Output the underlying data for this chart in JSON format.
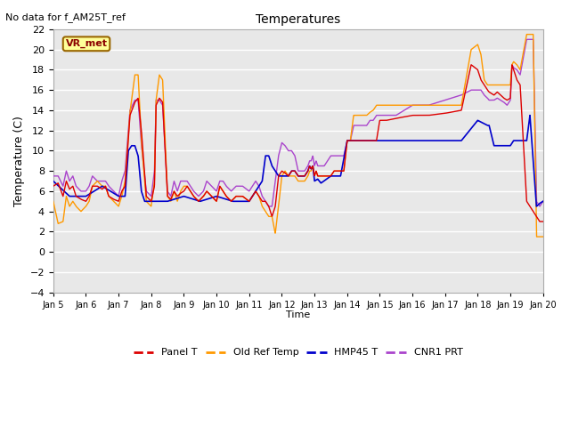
{
  "title": "Temperatures",
  "xlabel": "Time",
  "ylabel": "Temperature (C)",
  "top_left_text": "No data for f_AM25T_ref",
  "annotation_text": "VR_met",
  "ylim": [
    -4,
    22
  ],
  "xlim": [
    0,
    15
  ],
  "yticks": [
    -4,
    -2,
    0,
    2,
    4,
    6,
    8,
    10,
    12,
    14,
    16,
    18,
    20,
    22
  ],
  "xtick_labels": [
    "Jan 5",
    "Jan 6",
    "Jan 7",
    "Jan 8",
    "Jan 9",
    "Jan 10",
    "Jan 11",
    "Jan 12",
    "Jan 13",
    "Jan 14",
    "Jan 15",
    "Jan 16",
    "Jan 17",
    "Jan 18",
    "Jan 19",
    "Jan 20"
  ],
  "legend_labels": [
    "Panel T",
    "Old Ref Temp",
    "HMP45 T",
    "CNR1 PRT"
  ],
  "color_panel_t": "#dd0000",
  "color_old_ref": "#ff9900",
  "color_hmp45": "#0000cc",
  "color_cnr1": "#aa44cc",
  "bg_color": "#e8e8e8",
  "annotation_facecolor": "#ffff99",
  "annotation_edgecolor": "#996600",
  "panel_t_x": [
    0,
    0.15,
    0.3,
    0.4,
    0.5,
    0.6,
    0.7,
    0.85,
    1.0,
    1.1,
    1.2,
    1.35,
    1.5,
    1.6,
    1.7,
    1.85,
    2.0,
    2.1,
    2.2,
    2.35,
    2.5,
    2.6,
    2.7,
    2.85,
    3.0,
    3.1,
    3.15,
    3.25,
    3.35,
    3.5,
    3.6,
    3.7,
    3.8,
    3.9,
    4.0,
    4.1,
    4.2,
    4.3,
    4.45,
    4.6,
    4.7,
    4.85,
    5.0,
    5.1,
    5.2,
    5.3,
    5.45,
    5.6,
    5.8,
    6.0,
    6.1,
    6.2,
    6.3,
    6.4,
    6.5,
    6.6,
    6.7,
    6.8,
    6.9,
    7.0,
    7.1,
    7.2,
    7.3,
    7.4,
    7.5,
    7.6,
    7.7,
    7.8,
    7.85,
    7.9,
    7.95,
    8.0,
    8.05,
    8.1,
    8.2,
    8.3,
    8.4,
    8.5,
    8.6,
    8.7,
    8.8,
    8.9,
    9.0,
    9.05,
    9.1,
    9.2,
    9.3,
    9.4,
    9.5,
    9.6,
    9.7,
    9.8,
    9.9,
    10.0,
    10.1,
    10.2,
    10.5,
    11.0,
    11.5,
    12.0,
    12.5,
    12.8,
    13.0,
    13.1,
    13.2,
    13.3,
    13.35,
    13.5,
    13.6,
    13.7,
    13.8,
    13.9,
    14.0,
    14.05,
    14.1,
    14.2,
    14.3,
    14.5,
    14.6,
    14.7,
    14.8,
    14.9,
    15.0
  ],
  "panel_t_y": [
    6.5,
    6.8,
    5.5,
    7.0,
    6.2,
    6.5,
    5.5,
    5.2,
    5.0,
    5.5,
    6.5,
    6.5,
    6.2,
    6.5,
    5.5,
    5.2,
    5.0,
    6.0,
    6.5,
    13.5,
    14.8,
    15.2,
    12.0,
    5.5,
    5.0,
    6.5,
    14.5,
    15.2,
    14.8,
    5.5,
    5.2,
    6.0,
    5.5,
    5.8,
    6.0,
    6.5,
    6.0,
    5.5,
    5.0,
    5.5,
    6.0,
    5.5,
    5.0,
    6.5,
    6.0,
    5.5,
    5.0,
    5.5,
    5.5,
    5.0,
    5.5,
    6.0,
    5.5,
    5.0,
    5.0,
    4.5,
    3.5,
    4.5,
    7.5,
    8.0,
    7.8,
    7.5,
    8.0,
    8.0,
    7.5,
    7.5,
    7.5,
    8.0,
    8.5,
    8.2,
    8.5,
    7.5,
    8.0,
    7.5,
    7.5,
    7.5,
    7.5,
    7.5,
    8.0,
    8.0,
    8.0,
    8.0,
    11.0,
    11.0,
    11.0,
    11.0,
    11.0,
    11.0,
    11.0,
    11.0,
    11.0,
    11.0,
    11.0,
    13.0,
    13.0,
    13.0,
    13.2,
    13.5,
    13.5,
    13.7,
    14.0,
    18.5,
    18.0,
    17.0,
    16.5,
    16.0,
    15.8,
    15.5,
    15.8,
    15.5,
    15.2,
    15.0,
    15.2,
    18.5,
    18.0,
    17.0,
    16.5,
    5.0,
    4.5,
    4.0,
    3.5,
    3.0,
    3.0
  ],
  "old_ref_x": [
    0,
    0.15,
    0.3,
    0.4,
    0.5,
    0.6,
    0.7,
    0.85,
    1.0,
    1.1,
    1.2,
    1.35,
    1.5,
    1.6,
    1.7,
    1.85,
    2.0,
    2.1,
    2.2,
    2.35,
    2.5,
    2.6,
    2.7,
    2.85,
    3.0,
    3.1,
    3.15,
    3.25,
    3.35,
    3.5,
    3.6,
    3.7,
    3.8,
    3.9,
    4.0,
    4.1,
    4.2,
    4.3,
    4.45,
    4.6,
    4.7,
    4.85,
    5.0,
    5.1,
    5.2,
    5.3,
    5.45,
    5.6,
    5.8,
    6.0,
    6.1,
    6.2,
    6.3,
    6.4,
    6.5,
    6.6,
    6.7,
    6.8,
    6.9,
    7.0,
    7.1,
    7.2,
    7.3,
    7.4,
    7.5,
    7.6,
    7.7,
    7.8,
    7.85,
    7.9,
    7.95,
    8.0,
    8.05,
    8.1,
    8.2,
    8.3,
    8.4,
    8.5,
    8.6,
    8.7,
    8.8,
    8.9,
    9.0,
    9.05,
    9.1,
    9.2,
    9.3,
    9.4,
    9.5,
    9.6,
    9.7,
    9.8,
    9.9,
    10.0,
    10.1,
    10.2,
    10.5,
    11.0,
    11.5,
    12.0,
    12.5,
    12.8,
    13.0,
    13.1,
    13.2,
    13.3,
    13.35,
    13.5,
    13.6,
    13.7,
    13.8,
    13.9,
    14.0,
    14.05,
    14.1,
    14.2,
    14.3,
    14.5,
    14.6,
    14.7,
    14.8,
    14.9,
    15.0
  ],
  "old_ref_y": [
    5.0,
    2.8,
    3.0,
    5.5,
    4.5,
    5.0,
    4.5,
    4.0,
    4.5,
    5.0,
    6.5,
    7.0,
    6.5,
    6.5,
    5.5,
    5.0,
    4.5,
    5.5,
    7.0,
    13.8,
    17.5,
    17.5,
    11.0,
    5.0,
    4.5,
    7.0,
    15.0,
    17.5,
    17.0,
    5.5,
    5.0,
    6.0,
    5.0,
    6.0,
    6.5,
    6.5,
    6.0,
    5.5,
    5.0,
    5.5,
    6.0,
    5.5,
    5.0,
    6.5,
    6.0,
    5.5,
    5.0,
    5.5,
    5.5,
    5.0,
    5.5,
    6.0,
    5.5,
    4.5,
    4.0,
    3.5,
    3.5,
    1.8,
    4.5,
    7.5,
    8.0,
    7.5,
    7.5,
    7.5,
    7.0,
    7.0,
    7.0,
    7.5,
    8.0,
    8.0,
    8.5,
    7.5,
    8.0,
    7.5,
    7.5,
    7.5,
    7.5,
    7.5,
    8.0,
    8.0,
    8.0,
    8.0,
    11.0,
    11.0,
    11.0,
    13.5,
    13.5,
    13.5,
    13.5,
    13.5,
    13.8,
    14.0,
    14.5,
    14.5,
    14.5,
    14.5,
    14.5,
    14.5,
    14.5,
    14.5,
    14.5,
    20.0,
    20.5,
    19.5,
    17.0,
    16.5,
    16.5,
    16.5,
    16.5,
    16.5,
    16.5,
    16.5,
    16.5,
    18.5,
    18.8,
    18.5,
    18.0,
    21.5,
    21.5,
    21.5,
    1.5,
    1.5,
    1.5
  ],
  "hmp45_x": [
    0,
    0.5,
    1.0,
    1.5,
    2.0,
    2.2,
    2.3,
    2.4,
    2.5,
    2.6,
    2.7,
    2.8,
    3.0,
    3.5,
    4.0,
    4.5,
    5.0,
    5.5,
    6.0,
    6.4,
    6.5,
    6.6,
    6.7,
    6.8,
    6.9,
    7.0,
    7.1,
    7.2,
    7.3,
    7.4,
    7.5,
    7.6,
    7.7,
    7.8,
    7.85,
    7.9,
    7.95,
    8.0,
    8.1,
    8.2,
    8.5,
    8.8,
    9.0,
    9.5,
    10.0,
    10.05,
    10.1,
    10.5,
    11.0,
    11.5,
    12.0,
    12.5,
    13.0,
    13.3,
    13.35,
    13.5,
    13.6,
    13.7,
    13.8,
    14.0,
    14.1,
    14.2,
    14.3,
    14.5,
    14.6,
    14.8,
    14.9,
    15.0
  ],
  "hmp45_y": [
    7.0,
    5.5,
    5.5,
    6.5,
    5.5,
    5.5,
    10.0,
    10.5,
    10.5,
    9.5,
    6.0,
    5.0,
    5.0,
    5.0,
    5.5,
    5.0,
    5.5,
    5.0,
    5.0,
    7.0,
    9.5,
    9.5,
    8.5,
    8.0,
    7.5,
    7.5,
    7.5,
    7.5,
    8.0,
    8.0,
    7.5,
    7.5,
    7.5,
    8.0,
    8.5,
    8.2,
    8.5,
    7.0,
    7.2,
    6.8,
    7.5,
    7.5,
    11.0,
    11.0,
    11.0,
    11.0,
    11.0,
    11.0,
    11.0,
    11.0,
    11.0,
    11.0,
    13.0,
    12.5,
    12.5,
    10.5,
    10.5,
    10.5,
    10.5,
    10.5,
    11.0,
    11.0,
    11.0,
    11.0,
    13.5,
    4.5,
    4.8,
    5.0
  ],
  "cnr1_x": [
    0,
    0.15,
    0.3,
    0.4,
    0.5,
    0.6,
    0.7,
    0.85,
    1.0,
    1.1,
    1.2,
    1.35,
    1.5,
    1.6,
    1.7,
    1.85,
    2.0,
    2.1,
    2.2,
    2.35,
    2.5,
    2.6,
    2.7,
    2.85,
    3.0,
    3.1,
    3.15,
    3.25,
    3.35,
    3.5,
    3.6,
    3.7,
    3.8,
    3.9,
    4.0,
    4.1,
    4.2,
    4.3,
    4.45,
    4.6,
    4.7,
    4.85,
    5.0,
    5.1,
    5.2,
    5.3,
    5.45,
    5.6,
    5.8,
    6.0,
    6.1,
    6.2,
    6.3,
    6.4,
    6.5,
    6.6,
    6.7,
    6.8,
    6.9,
    7.0,
    7.1,
    7.2,
    7.3,
    7.4,
    7.5,
    7.6,
    7.7,
    7.8,
    7.85,
    7.9,
    7.95,
    8.0,
    8.05,
    8.1,
    8.2,
    8.3,
    8.4,
    8.5,
    8.6,
    8.7,
    8.8,
    8.9,
    9.0,
    9.05,
    9.1,
    9.2,
    9.3,
    9.4,
    9.5,
    9.6,
    9.7,
    9.8,
    9.9,
    10.0,
    10.1,
    10.2,
    10.5,
    11.0,
    11.5,
    12.0,
    12.5,
    12.8,
    13.0,
    13.1,
    13.2,
    13.3,
    13.35,
    13.5,
    13.6,
    13.7,
    13.8,
    13.9,
    14.0,
    14.05,
    14.1,
    14.2,
    14.3,
    14.5,
    14.6,
    14.7,
    14.8,
    14.9,
    15.0
  ],
  "cnr1_y": [
    7.5,
    7.5,
    6.5,
    8.0,
    7.0,
    7.5,
    6.5,
    6.0,
    6.0,
    6.5,
    7.5,
    7.0,
    7.0,
    7.0,
    6.5,
    6.0,
    5.5,
    7.0,
    8.0,
    14.0,
    15.0,
    15.0,
    10.5,
    6.0,
    5.5,
    8.0,
    15.0,
    15.0,
    14.5,
    6.0,
    5.5,
    7.0,
    6.0,
    7.0,
    7.0,
    7.0,
    6.5,
    6.0,
    5.5,
    6.0,
    7.0,
    6.5,
    6.0,
    7.0,
    7.0,
    6.5,
    6.0,
    6.5,
    6.5,
    6.0,
    6.5,
    7.0,
    6.5,
    5.5,
    5.0,
    4.5,
    4.5,
    7.0,
    9.5,
    10.8,
    10.5,
    10.0,
    10.0,
    9.5,
    8.0,
    8.0,
    8.0,
    8.5,
    9.0,
    9.0,
    9.5,
    8.5,
    9.0,
    8.5,
    8.5,
    8.5,
    9.0,
    9.5,
    9.5,
    9.5,
    9.5,
    9.5,
    11.0,
    11.0,
    11.0,
    12.5,
    12.5,
    12.5,
    12.5,
    12.5,
    13.0,
    13.0,
    13.5,
    13.5,
    13.5,
    13.5,
    13.5,
    14.5,
    14.5,
    15.0,
    15.5,
    16.0,
    16.0,
    16.0,
    15.5,
    15.2,
    15.0,
    15.0,
    15.2,
    15.0,
    14.8,
    14.5,
    15.0,
    18.5,
    18.2,
    18.0,
    17.5,
    21.0,
    21.0,
    21.0,
    5.0,
    4.5,
    5.0
  ]
}
